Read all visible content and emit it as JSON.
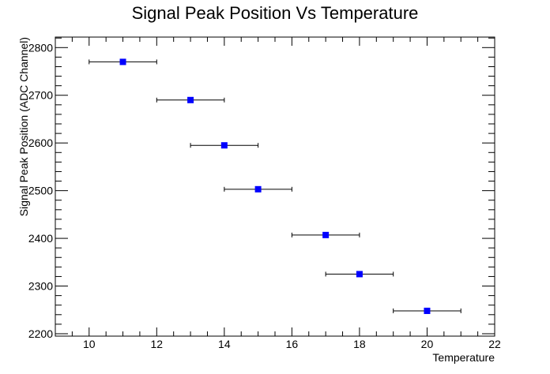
{
  "chart_data": {
    "type": "scatter",
    "title": "Signal Peak Position Vs Temperature",
    "xlabel": "Temperature",
    "ylabel": "Signal Peak Position (ADC Channel)",
    "xlim": [
      9,
      22
    ],
    "ylim": [
      2195,
      2822
    ],
    "x_ticks": [
      10,
      12,
      14,
      16,
      18,
      20,
      22
    ],
    "y_ticks": [
      2200,
      2300,
      2400,
      2500,
      2600,
      2700,
      2800
    ],
    "grid": false,
    "legend": "none",
    "marker_color": "#0000ff",
    "series": [
      {
        "x": [
          11,
          13,
          14,
          15,
          17,
          18,
          20
        ],
        "y": [
          2770,
          2690,
          2595,
          2503,
          2407,
          2325,
          2248
        ],
        "x_err": [
          1,
          1,
          1,
          1,
          1,
          1,
          1
        ]
      }
    ]
  }
}
